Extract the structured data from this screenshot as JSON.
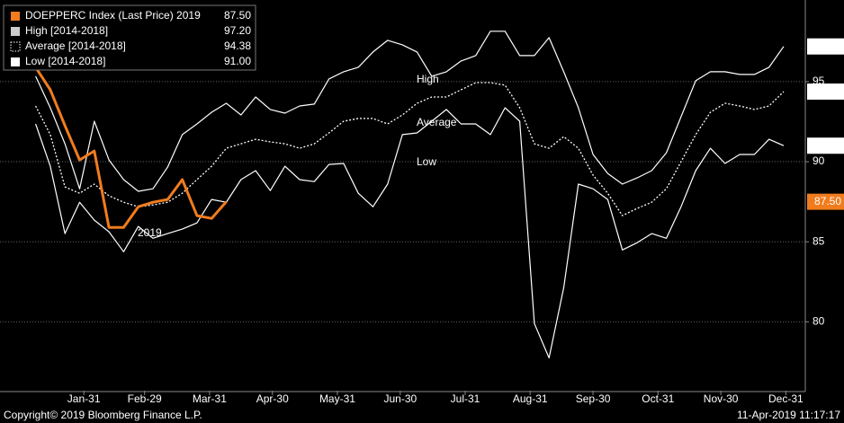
{
  "chart_data": {
    "type": "line",
    "x": [
      8,
      15,
      22,
      29,
      36,
      43,
      50,
      57,
      64,
      71,
      78,
      85,
      92,
      99,
      106,
      113,
      120,
      127,
      134,
      141,
      148,
      155,
      162,
      169,
      176,
      183,
      190,
      197,
      204,
      211,
      218,
      225,
      232,
      239,
      246,
      253,
      260,
      267,
      274,
      281,
      288,
      295,
      302,
      309,
      316,
      323,
      330,
      337,
      344,
      351,
      358,
      365
    ],
    "xlim": [
      -9,
      375.3
    ],
    "xticks": [
      {
        "value": 31,
        "label": "Jan-31"
      },
      {
        "value": 60,
        "label": "Feb-29"
      },
      {
        "value": 91,
        "label": "Mar-31"
      },
      {
        "value": 121,
        "label": "Apr-30"
      },
      {
        "value": 152,
        "label": "May-31"
      },
      {
        "value": 182,
        "label": "Jun-30"
      },
      {
        "value": 213,
        "label": "Jul-31"
      },
      {
        "value": 244,
        "label": "Aug-31"
      },
      {
        "value": 274,
        "label": "Sep-30"
      },
      {
        "value": 305,
        "label": "Oct-31"
      },
      {
        "value": 335,
        "label": "Nov-30"
      },
      {
        "value": 366,
        "label": "Dec-31"
      }
    ],
    "ylim": [
      75.7,
      100.1
    ],
    "yticks": [
      80,
      85,
      90,
      95
    ],
    "grid": true,
    "series": [
      {
        "name": "DOEPPERC Index (Last Price) 2019",
        "color": "#f07c1e",
        "line_style": "solid",
        "last_label": "87.50",
        "values": [
          95.9,
          94.49,
          92.25,
          90.11,
          90.67,
          85.9,
          85.9,
          87.19,
          87.47,
          87.64,
          88.88,
          86.63,
          86.46,
          87.5,
          null,
          null,
          null,
          null,
          null,
          null,
          null,
          null,
          null,
          null,
          null,
          null,
          null,
          null,
          null,
          null,
          null,
          null,
          null,
          null,
          null,
          null,
          null,
          null,
          null,
          null,
          null,
          null,
          null,
          null,
          null,
          null,
          null,
          null,
          null,
          null,
          null,
          null
        ]
      },
      {
        "name": "High [2014-2018]",
        "color": "#ffffff",
        "line_style": "solid",
        "last_label": "97.20",
        "values": [
          95.34,
          93.37,
          91.12,
          88.31,
          92.53,
          90.11,
          88.88,
          88.15,
          88.31,
          89.66,
          91.69,
          92.36,
          93.09,
          93.65,
          92.92,
          94.04,
          93.26,
          93.03,
          93.48,
          93.6,
          95.17,
          95.62,
          95.9,
          96.85,
          97.58,
          97.3,
          96.85,
          95.34,
          95.62,
          96.29,
          96.63,
          98.15,
          98.15,
          96.63,
          96.63,
          97.75,
          95.62,
          93.37,
          90.45,
          89.27,
          88.6,
          88.99,
          89.44,
          90.56,
          92.81,
          95.06,
          95.62,
          95.62,
          95.45,
          95.45,
          95.9,
          97.2
        ]
      },
      {
        "name": "Average [2014-2018]",
        "color": "#ffffff",
        "line_style": "dotted",
        "last_label": "94.38",
        "values": [
          93.48,
          91.69,
          88.43,
          88.03,
          88.6,
          87.87,
          87.47,
          87.19,
          87.3,
          87.47,
          88.03,
          88.88,
          89.72,
          90.84,
          91.12,
          91.4,
          91.24,
          91.12,
          90.84,
          91.12,
          91.8,
          92.53,
          92.7,
          92.7,
          92.36,
          92.92,
          93.65,
          94.04,
          94.04,
          94.49,
          94.94,
          94.94,
          94.78,
          93.37,
          91.12,
          90.84,
          91.57,
          90.84,
          89.16,
          88.03,
          86.63,
          87.08,
          87.47,
          88.31,
          90.0,
          91.69,
          93.09,
          93.65,
          93.48,
          93.26,
          93.48,
          94.38
        ]
      },
      {
        "name": "Low [2014-2018]",
        "color": "#ffffff",
        "line_style": "solid",
        "last_label": "91.00",
        "values": [
          92.36,
          89.72,
          85.51,
          87.47,
          86.35,
          85.62,
          84.38,
          85.96,
          85.22,
          85.51,
          85.79,
          86.18,
          87.64,
          87.47,
          88.88,
          89.44,
          88.2,
          89.72,
          88.88,
          88.76,
          89.83,
          89.89,
          88.03,
          87.19,
          88.6,
          91.69,
          91.8,
          92.53,
          93.26,
          92.36,
          92.36,
          91.69,
          93.37,
          92.53,
          79.89,
          77.75,
          82.13,
          88.6,
          88.31,
          87.64,
          84.49,
          84.94,
          85.51,
          85.22,
          87.19,
          89.44,
          90.84,
          89.89,
          90.45,
          90.45,
          91.4,
          91.0
        ]
      }
    ],
    "annotations": [
      "High",
      "Average",
      "Low",
      "2019"
    ],
    "copyright": "Copyright© 2019 Bloomberg Finance L.P.",
    "timestamp": "11-Apr-2019 11:17:17"
  }
}
